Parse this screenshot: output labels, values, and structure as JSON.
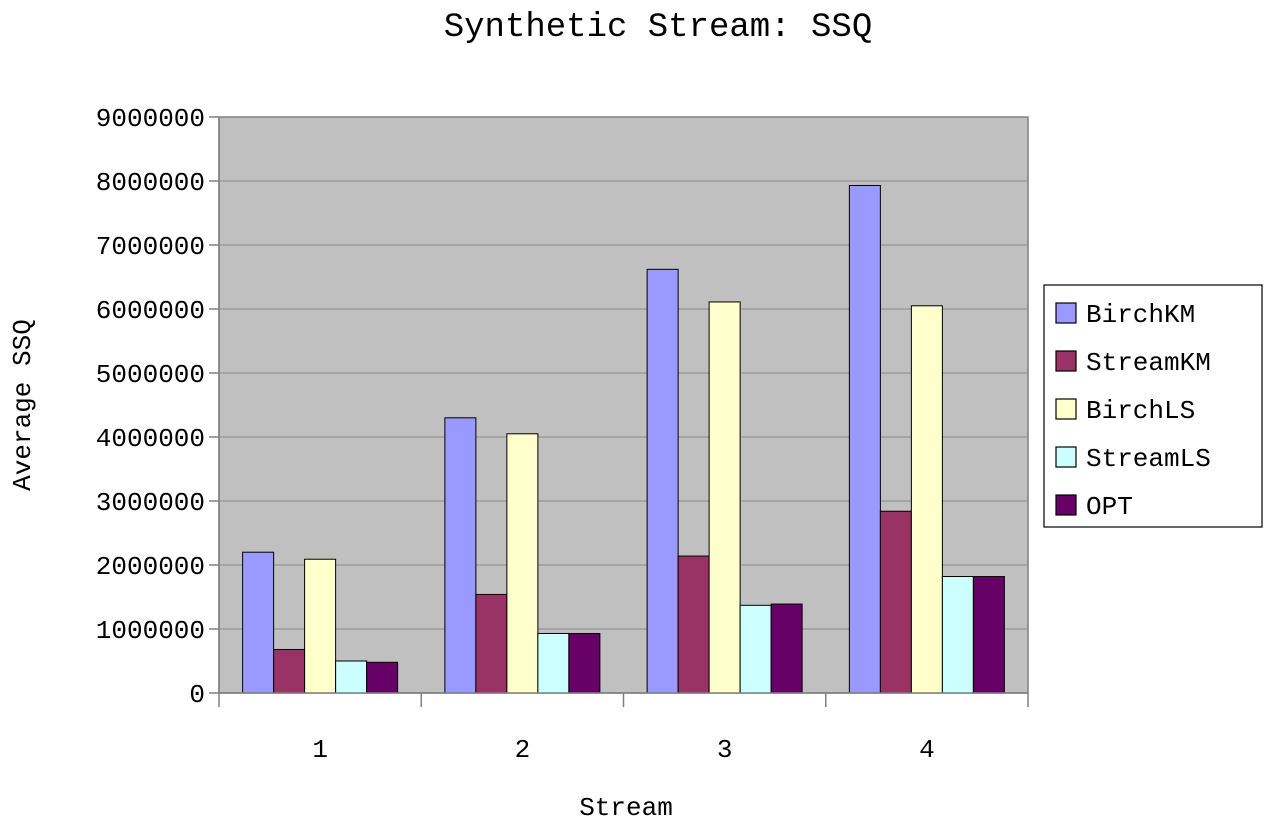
{
  "chart_data": {
    "type": "bar",
    "title": "Synthetic Stream: SSQ",
    "xlabel": "Stream",
    "ylabel": "Average SSQ",
    "categories": [
      "1",
      "2",
      "3",
      "4"
    ],
    "ylim": [
      0,
      9000000
    ],
    "yticks": [
      0,
      1000000,
      2000000,
      3000000,
      4000000,
      5000000,
      6000000,
      7000000,
      8000000,
      9000000
    ],
    "grid": true,
    "legend_position": "right",
    "series": [
      {
        "name": "BirchKM",
        "color": "#9999ff",
        "values": [
          2200000,
          4300000,
          6620000,
          7930000
        ]
      },
      {
        "name": "StreamKM",
        "color": "#993366",
        "values": [
          680000,
          1540000,
          2140000,
          2840000
        ]
      },
      {
        "name": "BirchLS",
        "color": "#ffffcc",
        "values": [
          2090000,
          4050000,
          6110000,
          6050000
        ]
      },
      {
        "name": "StreamLS",
        "color": "#ccffff",
        "values": [
          500000,
          930000,
          1370000,
          1820000
        ]
      },
      {
        "name": "OPT",
        "color": "#660066",
        "values": [
          480000,
          930000,
          1390000,
          1820000
        ]
      }
    ]
  },
  "style": {
    "plot_background": "#c0c0c0",
    "gridline_color": "#8a8a8a",
    "axis_color": "#808080"
  }
}
